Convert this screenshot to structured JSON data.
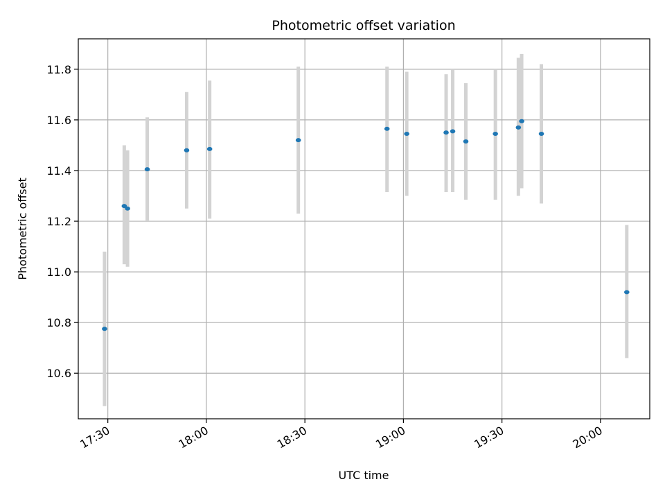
{
  "chart_data": {
    "type": "scatter",
    "title": "Photometric offset variation",
    "xlabel": "UTC time",
    "ylabel": "Photometric offset",
    "xlim": [
      "17:21",
      "20:15"
    ],
    "ylim": [
      10.42,
      11.92
    ],
    "x_ticks": [
      "17:30",
      "18:00",
      "18:30",
      "19:00",
      "19:30",
      "20:00"
    ],
    "y_ticks": [
      10.6,
      10.8,
      11.0,
      11.2,
      11.4,
      11.6,
      11.8
    ],
    "grid": true,
    "point_color": "#1f77b4",
    "errorbar_color": "#d3d3d3",
    "points": [
      {
        "time": "17:29",
        "value": 10.775,
        "low": 10.47,
        "high": 11.08
      },
      {
        "time": "17:35",
        "value": 11.26,
        "low": 11.03,
        "high": 11.5
      },
      {
        "time": "17:36",
        "value": 11.25,
        "low": 11.02,
        "high": 11.48
      },
      {
        "time": "17:42",
        "value": 11.405,
        "low": 11.2,
        "high": 11.61
      },
      {
        "time": "17:54",
        "value": 11.48,
        "low": 11.25,
        "high": 11.71
      },
      {
        "time": "18:01",
        "value": 11.485,
        "low": 11.21,
        "high": 11.755
      },
      {
        "time": "18:28",
        "value": 11.52,
        "low": 11.23,
        "high": 11.81
      },
      {
        "time": "18:55",
        "value": 11.565,
        "low": 11.315,
        "high": 11.81
      },
      {
        "time": "19:01",
        "value": 11.545,
        "low": 11.3,
        "high": 11.79
      },
      {
        "time": "19:13",
        "value": 11.55,
        "low": 11.315,
        "high": 11.78
      },
      {
        "time": "19:15",
        "value": 11.555,
        "low": 11.315,
        "high": 11.8
      },
      {
        "time": "19:19",
        "value": 11.515,
        "low": 11.285,
        "high": 11.745
      },
      {
        "time": "19:28",
        "value": 11.545,
        "low": 11.285,
        "high": 11.8
      },
      {
        "time": "19:35",
        "value": 11.57,
        "low": 11.3,
        "high": 11.845
      },
      {
        "time": "19:36",
        "value": 11.595,
        "low": 11.33,
        "high": 11.86
      },
      {
        "time": "19:42",
        "value": 11.545,
        "low": 11.27,
        "high": 11.82
      },
      {
        "time": "20:08",
        "value": 10.92,
        "low": 10.66,
        "high": 11.185
      }
    ]
  }
}
